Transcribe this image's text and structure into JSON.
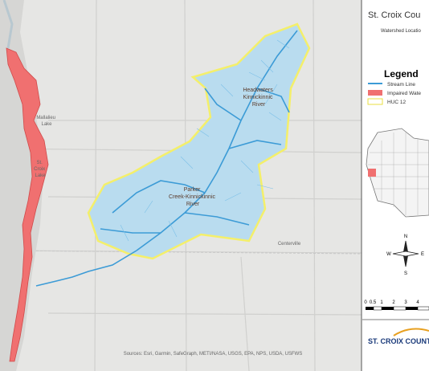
{
  "map": {
    "watersheds": [
      [
        "Headwaters",
        "Kinnickinnic",
        "River"
      ],
      [
        "Parker",
        "Creek-Kinnickinnic",
        "River"
      ]
    ],
    "lakes": [
      [
        "Mallalieu",
        "Lake"
      ],
      [
        "St.",
        "Croix",
        "Lake"
      ]
    ],
    "towns": [
      "Centerville"
    ],
    "attribution": "Sources: Esri, Garmin, SafeGraph, METI/NASA, USGS, EPA, NPS, USDA, USFWS"
  },
  "panel": {
    "title": "St. Croix Cou",
    "subtitle": "Watershed Locatio",
    "legend": {
      "title": "Legend",
      "items": [
        "Stream Line",
        "Impaired Wate",
        "HUC 12"
      ]
    },
    "compass": [
      "N",
      "E",
      "S",
      "W"
    ],
    "scale": [
      "0",
      "0.5",
      "1",
      "2",
      "3",
      "4"
    ],
    "logo": "ST. CROIX COUNT"
  }
}
